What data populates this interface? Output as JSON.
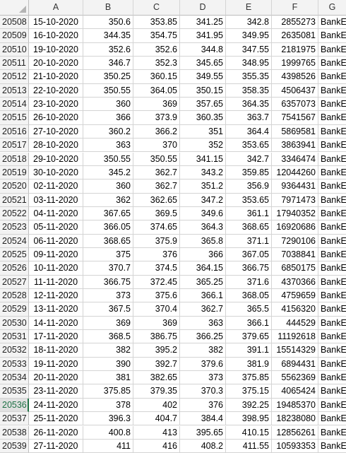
{
  "columns": [
    "A",
    "B",
    "C",
    "D",
    "E",
    "F",
    "G"
  ],
  "selected_row": "20536",
  "rows": [
    {
      "num": "20508",
      "date": "15-10-2020",
      "b": "350.6",
      "c": "353.85",
      "d": "341.25",
      "e": "342.8",
      "f": "2855273",
      "g": "BankE"
    },
    {
      "num": "20509",
      "date": "16-10-2020",
      "b": "344.35",
      "c": "354.75",
      "d": "341.95",
      "e": "349.95",
      "f": "2635081",
      "g": "BankE"
    },
    {
      "num": "20510",
      "date": "19-10-2020",
      "b": "352.6",
      "c": "352.6",
      "d": "344.8",
      "e": "347.55",
      "f": "2181975",
      "g": "BankE"
    },
    {
      "num": "20511",
      "date": "20-10-2020",
      "b": "346.7",
      "c": "352.3",
      "d": "345.65",
      "e": "348.95",
      "f": "1999765",
      "g": "BankE"
    },
    {
      "num": "20512",
      "date": "21-10-2020",
      "b": "350.25",
      "c": "360.15",
      "d": "349.55",
      "e": "355.35",
      "f": "4398526",
      "g": "BankE"
    },
    {
      "num": "20513",
      "date": "22-10-2020",
      "b": "350.55",
      "c": "364.05",
      "d": "350.15",
      "e": "358.35",
      "f": "4506437",
      "g": "BankE"
    },
    {
      "num": "20514",
      "date": "23-10-2020",
      "b": "360",
      "c": "369",
      "d": "357.65",
      "e": "364.35",
      "f": "6357073",
      "g": "BankE"
    },
    {
      "num": "20515",
      "date": "26-10-2020",
      "b": "366",
      "c": "373.9",
      "d": "360.35",
      "e": "363.7",
      "f": "7541567",
      "g": "BankE"
    },
    {
      "num": "20516",
      "date": "27-10-2020",
      "b": "360.2",
      "c": "366.2",
      "d": "351",
      "e": "364.4",
      "f": "5869581",
      "g": "BankE"
    },
    {
      "num": "20517",
      "date": "28-10-2020",
      "b": "363",
      "c": "370",
      "d": "352",
      "e": "353.65",
      "f": "3863941",
      "g": "BankE"
    },
    {
      "num": "20518",
      "date": "29-10-2020",
      "b": "350.55",
      "c": "350.55",
      "d": "341.15",
      "e": "342.7",
      "f": "3346474",
      "g": "BankE"
    },
    {
      "num": "20519",
      "date": "30-10-2020",
      "b": "345.2",
      "c": "362.7",
      "d": "343.2",
      "e": "359.85",
      "f": "12044260",
      "g": "BankE"
    },
    {
      "num": "20520",
      "date": "02-11-2020",
      "b": "360",
      "c": "362.7",
      "d": "351.2",
      "e": "356.9",
      "f": "9364431",
      "g": "BankE"
    },
    {
      "num": "20521",
      "date": "03-11-2020",
      "b": "362",
      "c": "362.65",
      "d": "347.2",
      "e": "353.65",
      "f": "7971473",
      "g": "BankE"
    },
    {
      "num": "20522",
      "date": "04-11-2020",
      "b": "367.65",
      "c": "369.5",
      "d": "349.6",
      "e": "361.1",
      "f": "17940352",
      "g": "BankE"
    },
    {
      "num": "20523",
      "date": "05-11-2020",
      "b": "366.05",
      "c": "374.65",
      "d": "364.3",
      "e": "368.65",
      "f": "16920686",
      "g": "BankE"
    },
    {
      "num": "20524",
      "date": "06-11-2020",
      "b": "368.65",
      "c": "375.9",
      "d": "365.8",
      "e": "371.1",
      "f": "7290106",
      "g": "BankE"
    },
    {
      "num": "20525",
      "date": "09-11-2020",
      "b": "375",
      "c": "376",
      "d": "366",
      "e": "367.05",
      "f": "7038841",
      "g": "BankE"
    },
    {
      "num": "20526",
      "date": "10-11-2020",
      "b": "370.7",
      "c": "374.5",
      "d": "364.15",
      "e": "366.75",
      "f": "6850175",
      "g": "BankE"
    },
    {
      "num": "20527",
      "date": "11-11-2020",
      "b": "366.75",
      "c": "372.45",
      "d": "365.25",
      "e": "371.6",
      "f": "4370366",
      "g": "BankE"
    },
    {
      "num": "20528",
      "date": "12-11-2020",
      "b": "373",
      "c": "375.6",
      "d": "366.1",
      "e": "368.05",
      "f": "4759659",
      "g": "BankE"
    },
    {
      "num": "20529",
      "date": "13-11-2020",
      "b": "367.5",
      "c": "370.4",
      "d": "362.7",
      "e": "365.5",
      "f": "4156320",
      "g": "BankE"
    },
    {
      "num": "20530",
      "date": "14-11-2020",
      "b": "369",
      "c": "369",
      "d": "363",
      "e": "366.1",
      "f": "444529",
      "g": "BankE"
    },
    {
      "num": "20531",
      "date": "17-11-2020",
      "b": "368.5",
      "c": "386.75",
      "d": "366.25",
      "e": "379.65",
      "f": "11192618",
      "g": "BankE"
    },
    {
      "num": "20532",
      "date": "18-11-2020",
      "b": "382",
      "c": "395.2",
      "d": "382",
      "e": "391.1",
      "f": "15514329",
      "g": "BankE"
    },
    {
      "num": "20533",
      "date": "19-11-2020",
      "b": "390",
      "c": "392.7",
      "d": "379.6",
      "e": "381.9",
      "f": "6894431",
      "g": "BankE"
    },
    {
      "num": "20534",
      "date": "20-11-2020",
      "b": "381",
      "c": "382.65",
      "d": "373",
      "e": "375.85",
      "f": "5562369",
      "g": "BankE"
    },
    {
      "num": "20535",
      "date": "23-11-2020",
      "b": "375.85",
      "c": "379.35",
      "d": "370.3",
      "e": "375.15",
      "f": "4065424",
      "g": "BankE"
    },
    {
      "num": "20536",
      "date": "24-11-2020",
      "b": "378",
      "c": "402",
      "d": "376",
      "e": "392.25",
      "f": "19485370",
      "g": "BankE"
    },
    {
      "num": "20537",
      "date": "25-11-2020",
      "b": "396.3",
      "c": "404.7",
      "d": "384.4",
      "e": "398.95",
      "f": "18238080",
      "g": "BankE"
    },
    {
      "num": "20538",
      "date": "26-11-2020",
      "b": "400.8",
      "c": "413",
      "d": "395.65",
      "e": "410.15",
      "f": "12856261",
      "g": "BankE"
    },
    {
      "num": "20539",
      "date": "27-11-2020",
      "b": "411",
      "c": "416",
      "d": "408.2",
      "e": "411.55",
      "f": "10593353",
      "g": "BankE"
    }
  ]
}
